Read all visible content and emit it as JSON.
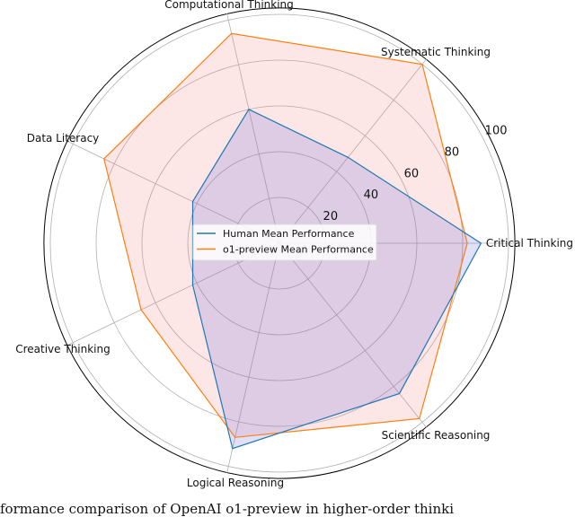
{
  "chart_data": {
    "type": "radar",
    "categories": [
      "Critical Thinking",
      "Systematic Thinking",
      "Computational Thinking",
      "Data Literacy",
      "Creative Thinking",
      "Logical Reasoning",
      "Scientific Reasoning"
    ],
    "series": [
      {
        "name": "Human Mean Performance",
        "values": [
          88,
          48,
          60,
          42,
          42,
          92,
          84
        ],
        "color": "#1f77b4",
        "fill": "#6464dc"
      },
      {
        "name": "o1-preview Mean Performance",
        "values": [
          82,
          100,
          94,
          85,
          67,
          87,
          98
        ],
        "color": "#ff7f0e",
        "fill": "#f08080"
      }
    ],
    "radial_ticks": [
      20,
      40,
      60,
      80,
      100
    ],
    "rlim": [
      0,
      102
    ],
    "grid": true,
    "legend_placement": "center"
  },
  "caption": "formance comparison of OpenAI o1-preview in higher-order thinki"
}
